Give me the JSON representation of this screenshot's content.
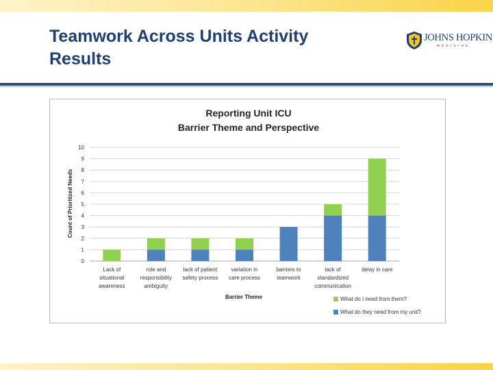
{
  "slide": {
    "title": "Teamwork Across Units Activity Results"
  },
  "logo": {
    "name": "JOHNS HOPKINS",
    "sub": "MEDICINE"
  },
  "chart_data": {
    "type": "bar",
    "stacked": true,
    "title": "Reporting Unit ICU",
    "subtitle": "Barrier Theme and Perspective",
    "xlabel": "Barrier Theme",
    "ylabel": "Count of Prioritized Needs",
    "ylim": [
      0,
      10
    ],
    "yticks": [
      "0",
      "1",
      "2",
      "3",
      "4",
      "5",
      "6",
      "7",
      "8",
      "9",
      "10"
    ],
    "grid": true,
    "legend_position": "bottom-right",
    "categories": [
      [
        "Lack of",
        "situational",
        "awareness"
      ],
      [
        "role and",
        "responsibility",
        "ambiguity"
      ],
      [
        "lack of patient",
        "safety process"
      ],
      [
        "variation in",
        "care process"
      ],
      [
        "barriers to",
        "teamwork"
      ],
      [
        "lack of",
        "standardized",
        "communication"
      ],
      [
        "delay in care"
      ]
    ],
    "series": [
      {
        "name": "What do they need from my unit?",
        "color": "#4f81bd",
        "values": [
          0,
          1,
          1,
          1,
          3,
          4,
          4
        ]
      },
      {
        "name": "What do I need from them?",
        "color": "#92d050",
        "values": [
          1,
          1,
          1,
          1,
          0,
          1,
          5
        ]
      }
    ],
    "legend_order": [
      1,
      0
    ]
  }
}
